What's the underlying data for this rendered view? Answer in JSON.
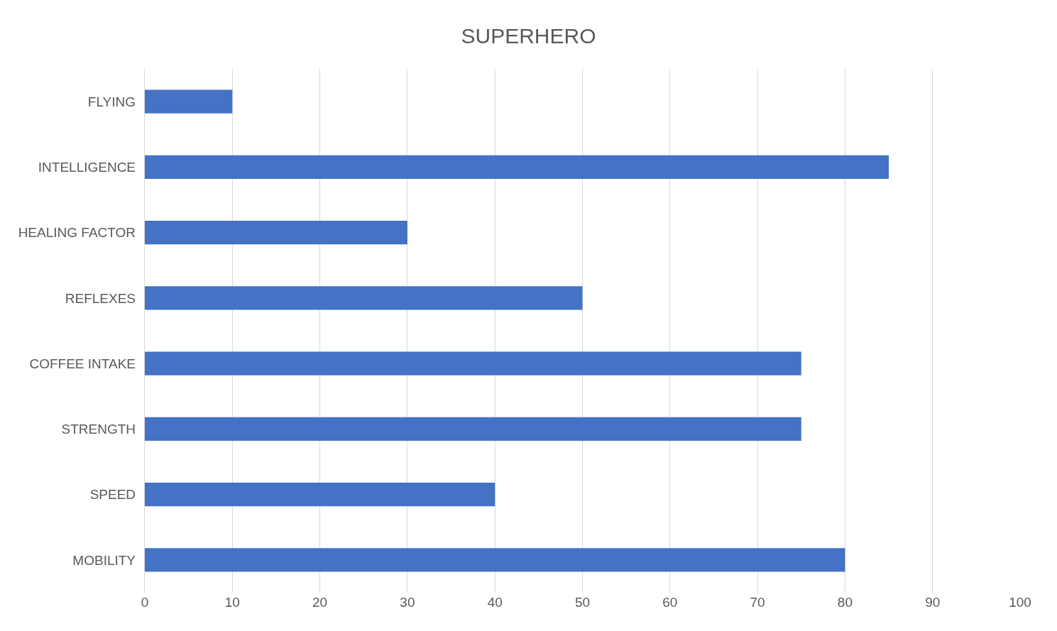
{
  "chart_data": {
    "type": "bar",
    "title": "SUPERHERO",
    "orientation": "horizontal",
    "categories": [
      "FLYING",
      "INTELLIGENCE",
      "HEALING FACTOR",
      "REFLEXES",
      "COFFEE INTAKE",
      "STRENGTH",
      "SPEED",
      "MOBILITY"
    ],
    "values": [
      10,
      85,
      30,
      50,
      75,
      75,
      40,
      80
    ],
    "color": "#4472c4",
    "xlim": [
      0,
      100
    ],
    "xticks": [
      0,
      10,
      20,
      30,
      40,
      50,
      60,
      70,
      80,
      90,
      100
    ],
    "grid": "x"
  }
}
